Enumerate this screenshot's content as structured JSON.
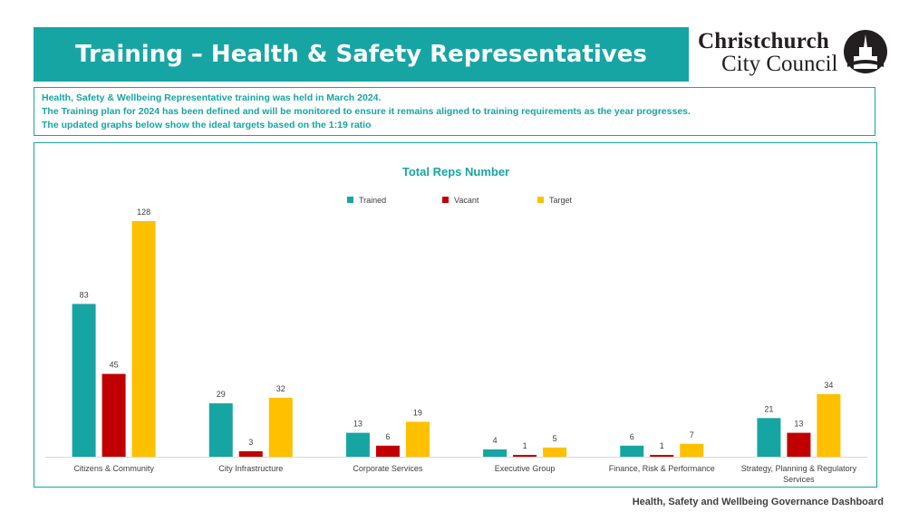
{
  "header": {
    "title": "Training – Health & Safety Representatives",
    "logo_line1": "Christchurch",
    "logo_line2": "City Council"
  },
  "info": {
    "line1": "Health, Safety & Wellbeing Representative training was held in March 2024.",
    "line2": "The Training plan for 2024 has been defined and will be monitored to ensure it remains aligned to training requirements as the year progresses.",
    "line3": "The updated graphs below show the ideal targets based on the 1:19 ratio"
  },
  "footer": {
    "text": "Health, Safety and Wellbeing Governance Dashboard"
  },
  "colors": {
    "accent": "#17a5a4",
    "trained": "#17a5a4",
    "vacant": "#c00000",
    "target": "#ffc000"
  },
  "chart_data": {
    "type": "bar",
    "title": "Total Reps Number",
    "categories": [
      "Citizens & Community",
      "City Infrastructure",
      "Corporate Services",
      "Executive Group",
      "Finance, Risk & Performance",
      "Strategy, Planning & Regulatory Services"
    ],
    "series": [
      {
        "name": "Trained",
        "values": [
          83,
          29,
          13,
          4,
          6,
          21
        ]
      },
      {
        "name": "Vacant",
        "values": [
          45,
          3,
          6,
          1,
          1,
          13
        ]
      },
      {
        "name": "Target",
        "values": [
          128,
          32,
          19,
          5,
          7,
          34
        ]
      }
    ],
    "ylim": [
      0,
      128
    ],
    "grid": false,
    "legend": "top-center",
    "data_labels": true
  }
}
